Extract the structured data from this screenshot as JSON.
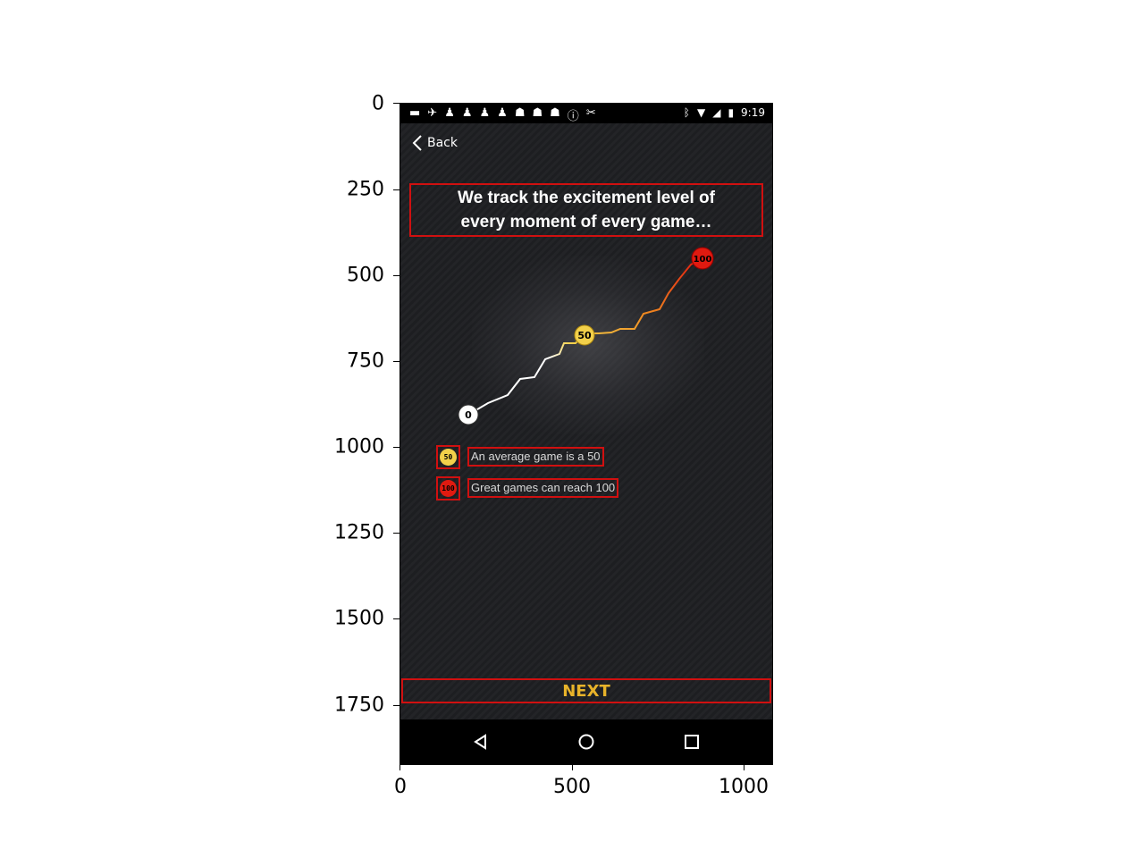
{
  "axes": {
    "y_ticks": [
      "0",
      "250",
      "500",
      "750",
      "1000",
      "1250",
      "1500",
      "1750"
    ],
    "x_ticks": [
      "0",
      "500",
      "1000"
    ]
  },
  "status_bar": {
    "time": "9:19",
    "left_icons": [
      "message-icon",
      "plane-icon",
      "chess-icon",
      "chess-icon",
      "chess-icon",
      "chess-icon",
      "mask-icon",
      "mask-icon",
      "mask-icon",
      "info-icon",
      "tool-icon"
    ],
    "right_icons": [
      "bluetooth-icon",
      "wifi-icon",
      "signal-icon",
      "battery-icon"
    ]
  },
  "header": {
    "back_label": "Back"
  },
  "headline": {
    "line1": "We track the excitement level of",
    "line2": "every moment of every game…"
  },
  "graph": {
    "markers": [
      {
        "label": "0",
        "color": "#ffffff"
      },
      {
        "label": "50",
        "color": "#f2d04a"
      },
      {
        "label": "100",
        "color": "#e01a10"
      }
    ]
  },
  "legend": [
    {
      "badge": "50",
      "color": "#f2d04a",
      "text": "An average game is a 50"
    },
    {
      "badge": "100",
      "color": "#e01a10",
      "text": "Great games can reach 100"
    }
  ],
  "footer": {
    "next_label": "NEXT"
  },
  "colors": {
    "accent": "#e8b32a",
    "highlight_box": "#d01010"
  }
}
